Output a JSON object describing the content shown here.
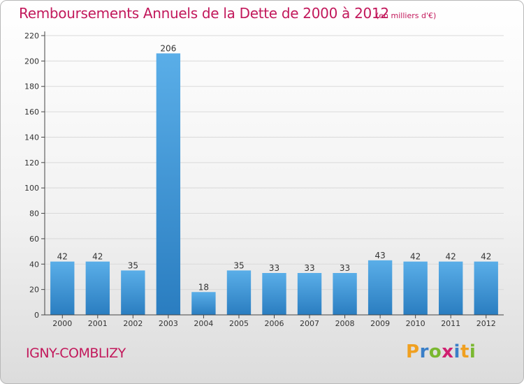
{
  "header": {
    "title": "Remboursements Annuels de la Dette de 2000 à 2012",
    "units": "(en milliers d'€)"
  },
  "footer": {
    "commune": "IGNY-COMBLIZY",
    "brand": {
      "letters": [
        "P",
        "r",
        "o",
        "x",
        "i",
        "t",
        "i"
      ],
      "colors": [
        "#f0a020",
        "#3a7fc8",
        "#7ab830",
        "#d02070",
        "#3a7fc8",
        "#f0a020",
        "#7ab830"
      ]
    }
  },
  "colors": {
    "bar_top": "#5aaee8",
    "bar_bottom": "#2a7dc0",
    "grid": "#d9d9d9",
    "axis": "#444444"
  },
  "chart_data": {
    "type": "bar",
    "title": "Remboursements Annuels de la Dette de 2000 à 2012",
    "xlabel": "",
    "ylabel": "",
    "ylim": [
      0,
      220
    ],
    "yticks": [
      0,
      20,
      40,
      60,
      80,
      100,
      120,
      140,
      160,
      180,
      200,
      220
    ],
    "categories": [
      "2000",
      "2001",
      "2002",
      "2003",
      "2004",
      "2005",
      "2006",
      "2007",
      "2008",
      "2009",
      "2010",
      "2011",
      "2012"
    ],
    "values": [
      42,
      42,
      35,
      206,
      18,
      35,
      33,
      33,
      33,
      43,
      42,
      42,
      42
    ],
    "grid": true,
    "legend": "none"
  }
}
